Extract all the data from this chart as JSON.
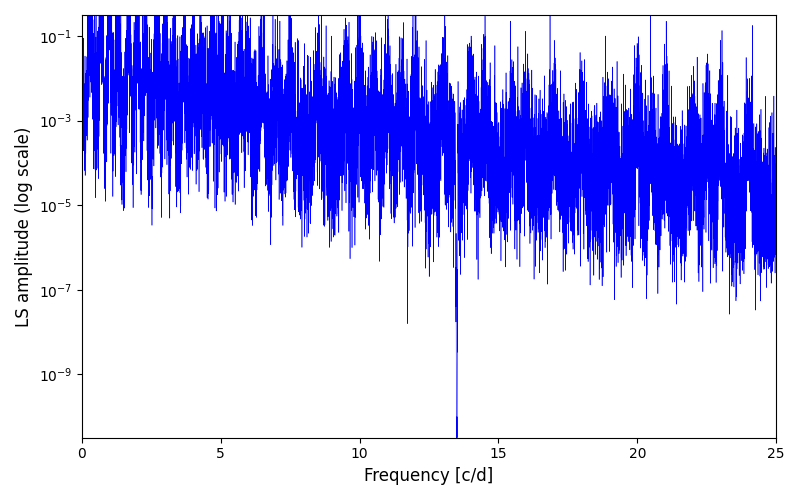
{
  "title": "",
  "xlabel": "Frequency [c/d]",
  "ylabel": "LS amplitude (log scale)",
  "line_color": "#0000FF",
  "xlim": [
    0,
    25
  ],
  "ylim_log": [
    -10.5,
    -0.5
  ],
  "xticks": [
    0,
    5,
    10,
    15,
    20,
    25
  ],
  "background_color": "#ffffff",
  "figsize": [
    8.0,
    5.0
  ],
  "dpi": 100,
  "seed": 42,
  "n_points": 12000,
  "freq_max": 25.0
}
